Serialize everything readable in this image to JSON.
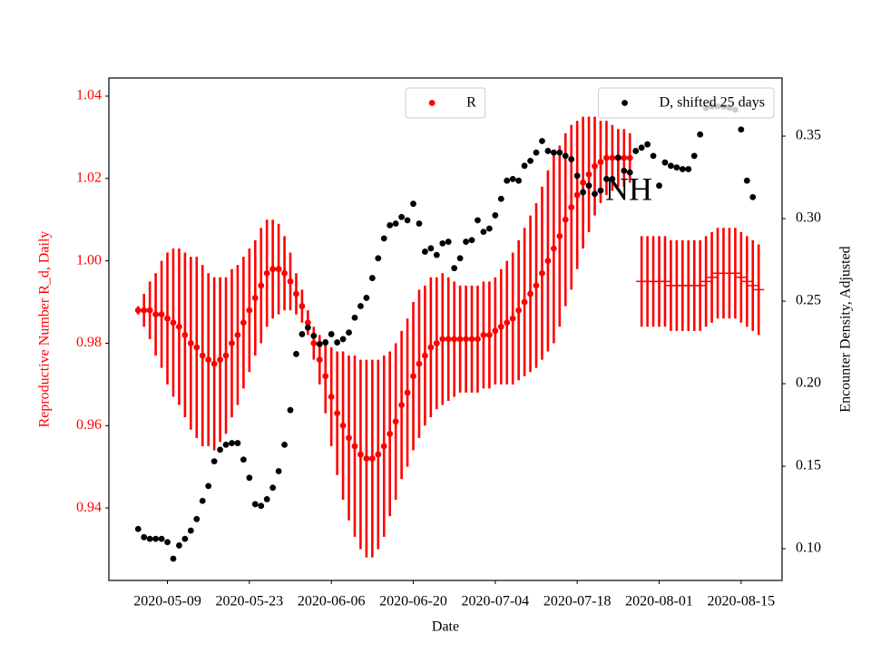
{
  "chart_data": {
    "type": "errorbar",
    "xlabel": "Date",
    "ylabel": "Reproductive Number R_d, Daily",
    "y2label": "Encounter Density, Adjusted",
    "annotation": "NH",
    "xlim": [
      "2020-04-29",
      "2020-08-22"
    ],
    "xticks": [
      "2020-05-09",
      "2020-05-23",
      "2020-06-06",
      "2020-06-20",
      "2020-07-04",
      "2020-07-18",
      "2020-08-01",
      "2020-08-15"
    ],
    "ylim": [
      0.9224,
      1.0444
    ],
    "yticks": [
      0.94,
      0.96,
      0.98,
      {
        "value": 1.0,
        "label": "1.00"
      },
      1.02,
      1.04
    ],
    "y2lim": [
      0.0808,
      0.3852
    ],
    "y2ticks": [
      {
        "value": 0.1,
        "label": "0.10"
      },
      0.15,
      {
        "value": 0.2,
        "label": "0.20"
      },
      0.25,
      {
        "value": 0.3,
        "label": "0.30"
      },
      0.35
    ],
    "ylabel_color": "#ff0000",
    "x": [
      "2020-05-04",
      "2020-05-05",
      "2020-05-06",
      "2020-05-07",
      "2020-05-08",
      "2020-05-09",
      "2020-05-10",
      "2020-05-11",
      "2020-05-12",
      "2020-05-13",
      "2020-05-14",
      "2020-05-15",
      "2020-05-16",
      "2020-05-17",
      "2020-05-18",
      "2020-05-19",
      "2020-05-20",
      "2020-05-21",
      "2020-05-22",
      "2020-05-23",
      "2020-05-24",
      "2020-05-25",
      "2020-05-26",
      "2020-05-27",
      "2020-05-28",
      "2020-05-29",
      "2020-05-30",
      "2020-05-31",
      "2020-06-01",
      "2020-06-02",
      "2020-06-03",
      "2020-06-04",
      "2020-06-05",
      "2020-06-06",
      "2020-06-07",
      "2020-06-08",
      "2020-06-09",
      "2020-06-10",
      "2020-06-11",
      "2020-06-12",
      "2020-06-13",
      "2020-06-14",
      "2020-06-15",
      "2020-06-16",
      "2020-06-17",
      "2020-06-18",
      "2020-06-19",
      "2020-06-20",
      "2020-06-21",
      "2020-06-22",
      "2020-06-23",
      "2020-06-24",
      "2020-06-25",
      "2020-06-26",
      "2020-06-27",
      "2020-06-28",
      "2020-06-29",
      "2020-06-30",
      "2020-07-01",
      "2020-07-02",
      "2020-07-03",
      "2020-07-04",
      "2020-07-05",
      "2020-07-06",
      "2020-07-07",
      "2020-07-08",
      "2020-07-09",
      "2020-07-10",
      "2020-07-11",
      "2020-07-12",
      "2020-07-13",
      "2020-07-14",
      "2020-07-15",
      "2020-07-16",
      "2020-07-17",
      "2020-07-18",
      "2020-07-19",
      "2020-07-20",
      "2020-07-21",
      "2020-07-22",
      "2020-07-23",
      "2020-07-24",
      "2020-07-25",
      "2020-07-26",
      "2020-07-27",
      "2020-07-28",
      "2020-07-29",
      "2020-07-30",
      "2020-07-31",
      "2020-08-01",
      "2020-08-02",
      "2020-08-03",
      "2020-08-04",
      "2020-08-05",
      "2020-08-06",
      "2020-08-07",
      "2020-08-08",
      "2020-08-09",
      "2020-08-10",
      "2020-08-11",
      "2020-08-12",
      "2020-08-13",
      "2020-08-14",
      "2020-08-15",
      "2020-08-16",
      "2020-08-17",
      "2020-08-18"
    ],
    "series": [
      {
        "name": "R",
        "color": "#ff0000",
        "marker": "o",
        "legend": "upper center",
        "values": [
          0.988,
          0.988,
          0.988,
          0.987,
          0.987,
          0.986,
          0.985,
          0.984,
          0.982,
          0.98,
          0.979,
          0.977,
          0.976,
          0.975,
          0.976,
          0.977,
          0.98,
          0.982,
          0.985,
          0.988,
          0.991,
          0.994,
          0.997,
          0.998,
          0.998,
          0.997,
          0.995,
          0.992,
          0.989,
          0.985,
          0.98,
          0.976,
          0.972,
          0.967,
          0.963,
          0.96,
          0.957,
          0.955,
          0.953,
          0.952,
          0.952,
          0.953,
          0.955,
          0.958,
          0.961,
          0.965,
          0.968,
          0.972,
          0.975,
          0.977,
          0.979,
          0.98,
          0.981,
          0.981,
          0.981,
          0.981,
          0.981,
          0.981,
          0.981,
          0.982,
          0.982,
          0.983,
          0.984,
          0.985,
          0.986,
          0.988,
          0.99,
          0.992,
          0.994,
          0.997,
          1.0,
          1.003,
          1.006,
          1.01,
          1.013,
          1.016,
          1.019,
          1.021,
          1.023,
          1.024,
          1.025,
          1.025,
          1.025,
          1.025,
          1.025,
          null,
          null,
          null,
          null,
          null,
          null,
          null,
          null,
          null,
          null,
          null,
          null,
          null,
          null,
          null,
          null,
          null,
          null,
          null,
          null,
          null,
          null
        ],
        "errors": [
          0.001,
          0.004,
          0.007,
          0.01,
          0.013,
          0.016,
          0.018,
          0.019,
          0.02,
          0.021,
          0.022,
          0.022,
          0.021,
          0.021,
          0.02,
          0.019,
          0.018,
          0.017,
          0.016,
          0.015,
          0.014,
          0.014,
          0.013,
          0.012,
          0.011,
          0.009,
          0.007,
          0.005,
          0.004,
          0.003,
          0.004,
          0.006,
          0.009,
          0.012,
          0.015,
          0.018,
          0.02,
          0.022,
          0.023,
          0.024,
          0.024,
          0.023,
          0.022,
          0.02,
          0.019,
          0.018,
          0.018,
          0.018,
          0.018,
          0.017,
          0.017,
          0.016,
          0.016,
          0.015,
          0.014,
          0.013,
          0.013,
          0.013,
          0.013,
          0.013,
          0.013,
          0.013,
          0.014,
          0.015,
          0.016,
          0.017,
          0.018,
          0.019,
          0.02,
          0.021,
          0.022,
          0.023,
          0.022,
          0.021,
          0.02,
          0.018,
          0.016,
          0.014,
          0.012,
          0.01,
          0.009,
          0.008,
          0.007,
          0.007,
          0.006,
          null,
          null,
          null,
          null,
          null,
          null,
          null,
          null,
          null,
          null,
          null,
          null,
          null,
          null,
          null,
          null,
          null,
          null,
          null,
          null,
          null,
          null
        ]
      },
      {
        "color": "#ff0000",
        "marker": "_",
        "x": [
          "2020-07-29",
          "2020-07-30",
          "2020-07-31",
          "2020-08-01",
          "2020-08-02",
          "2020-08-03",
          "2020-08-04",
          "2020-08-05",
          "2020-08-06",
          "2020-08-07",
          "2020-08-08",
          "2020-08-09",
          "2020-08-10",
          "2020-08-11",
          "2020-08-12",
          "2020-08-13",
          "2020-08-14",
          "2020-08-15",
          "2020-08-16",
          "2020-08-17",
          "2020-08-18"
        ],
        "values": [
          0.995,
          0.995,
          0.995,
          0.995,
          0.995,
          0.994,
          0.994,
          0.994,
          0.994,
          0.994,
          0.994,
          0.995,
          0.996,
          0.997,
          0.997,
          0.997,
          0.997,
          0.996,
          0.995,
          0.994,
          0.993
        ],
        "errors": [
          0.011,
          0.011,
          0.011,
          0.011,
          0.011,
          0.011,
          0.011,
          0.011,
          0.011,
          0.011,
          0.011,
          0.011,
          0.011,
          0.011,
          0.011,
          0.011,
          0.011,
          0.011,
          0.011,
          0.011,
          0.011
        ]
      },
      {
        "name": "D, shifted 25 days",
        "color": "#000000",
        "marker": "o",
        "axis": "y2",
        "legend": "upper right",
        "values": [
          0.112,
          0.107,
          0.106,
          0.106,
          0.106,
          0.104,
          0.094,
          0.102,
          0.106,
          0.111,
          0.118,
          0.129,
          0.138,
          0.153,
          0.16,
          0.163,
          0.164,
          0.164,
          0.154,
          0.143,
          0.127,
          0.126,
          0.13,
          0.137,
          0.147,
          0.163,
          0.184,
          0.218,
          0.23,
          0.234,
          0.229,
          0.224,
          0.225,
          0.23,
          0.225,
          0.227,
          0.231,
          0.24,
          0.247,
          0.252,
          0.264,
          0.276,
          0.288,
          0.296,
          0.297,
          0.301,
          0.299,
          0.309,
          0.297,
          0.28,
          0.282,
          0.278,
          0.285,
          0.286,
          0.27,
          0.276,
          0.286,
          0.287,
          0.299,
          0.292,
          0.294,
          0.302,
          0.312,
          0.323,
          0.324,
          0.323,
          0.332,
          0.335,
          0.34,
          0.347,
          0.341,
          0.34,
          0.34,
          0.338,
          0.336,
          0.326,
          0.316,
          0.32,
          0.315,
          0.317,
          0.324,
          0.324,
          0.337,
          0.329,
          0.328,
          0.341,
          0.343,
          0.345,
          0.338,
          0.32,
          0.334,
          0.332,
          0.331,
          0.33,
          0.33,
          0.338,
          0.351,
          0.367,
          0.368,
          0.368,
          0.368,
          0.367,
          0.366,
          0.354,
          0.323,
          0.313,
          null
        ]
      }
    ]
  }
}
